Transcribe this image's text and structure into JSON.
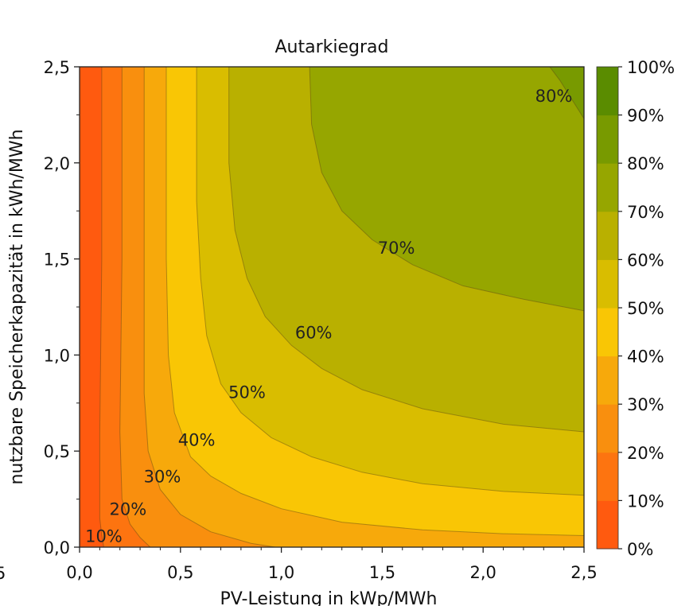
{
  "chart_data": {
    "type": "contourf",
    "title": "Autarkiegrad",
    "xlabel": "PV-Leistung in kWp/MWh",
    "ylabel": "nutzbare Speicherkapazität in kWh/MWh",
    "xlim": [
      0,
      2.5
    ],
    "ylim": [
      0,
      2.5
    ],
    "x_ticks": [
      0,
      0.5,
      1.0,
      1.5,
      2.0,
      2.5
    ],
    "x_tick_labels": [
      "0,0",
      "0,5",
      "1,0",
      "1,5",
      "2,0",
      "2,5"
    ],
    "y_ticks": [
      0,
      0.5,
      1.0,
      1.5,
      2.0,
      2.5
    ],
    "y_tick_labels": [
      "0,0",
      "0,5",
      "1,0",
      "1,5",
      "2,0",
      "2,5"
    ],
    "left_edge_fragment": "5",
    "levels": [
      0,
      10,
      20,
      30,
      40,
      50,
      60,
      70,
      80,
      90,
      100
    ],
    "band_colors": [
      "#ff5a0f",
      "#fd7410",
      "#f98f0e",
      "#f7a90b",
      "#f9c605",
      "#d9bd00",
      "#b9b000",
      "#96a600",
      "#789a00",
      "#5a8c00"
    ],
    "colorbar_labels": [
      "0%",
      "10%",
      "20%",
      "30%",
      "40%",
      "50%",
      "60%",
      "70%",
      "80%",
      "90%",
      "100%"
    ],
    "contour_lines": [
      {
        "level": 10,
        "label": "10%",
        "points": [
          [
            0.11,
            2.5
          ],
          [
            0.11,
            1.5
          ],
          [
            0.1,
            0.6
          ],
          [
            0.1,
            0.15
          ],
          [
            0.11,
            0.06
          ],
          [
            0.12,
            0
          ]
        ]
      },
      {
        "level": 20,
        "label": "20%",
        "points": [
          [
            0.21,
            2.5
          ],
          [
            0.21,
            1.5
          ],
          [
            0.2,
            0.6
          ],
          [
            0.21,
            0.25
          ],
          [
            0.25,
            0.12
          ],
          [
            0.3,
            0.05
          ],
          [
            0.35,
            0
          ]
        ]
      },
      {
        "level": 30,
        "label": "30%",
        "points": [
          [
            0.32,
            2.5
          ],
          [
            0.32,
            1.5
          ],
          [
            0.32,
            0.8
          ],
          [
            0.34,
            0.5
          ],
          [
            0.4,
            0.3
          ],
          [
            0.5,
            0.17
          ],
          [
            0.65,
            0.08
          ],
          [
            0.85,
            0.02
          ],
          [
            0.97,
            0
          ]
        ]
      },
      {
        "level": 40,
        "label": "40%",
        "points": [
          [
            0.43,
            2.5
          ],
          [
            0.43,
            1.5
          ],
          [
            0.44,
            1.0
          ],
          [
            0.47,
            0.7
          ],
          [
            0.55,
            0.47
          ],
          [
            0.65,
            0.37
          ],
          [
            0.8,
            0.28
          ],
          [
            1.0,
            0.2
          ],
          [
            1.3,
            0.13
          ],
          [
            1.7,
            0.09
          ],
          [
            2.1,
            0.07
          ],
          [
            2.5,
            0.06
          ]
        ]
      },
      {
        "level": 50,
        "label": "50%",
        "points": [
          [
            0.58,
            2.5
          ],
          [
            0.58,
            1.8
          ],
          [
            0.6,
            1.4
          ],
          [
            0.63,
            1.1
          ],
          [
            0.7,
            0.85
          ],
          [
            0.8,
            0.7
          ],
          [
            0.95,
            0.57
          ],
          [
            1.15,
            0.47
          ],
          [
            1.4,
            0.39
          ],
          [
            1.7,
            0.33
          ],
          [
            2.1,
            0.29
          ],
          [
            2.5,
            0.27
          ]
        ]
      },
      {
        "level": 60,
        "label": "60%",
        "points": [
          [
            0.74,
            2.5
          ],
          [
            0.74,
            2.0
          ],
          [
            0.77,
            1.65
          ],
          [
            0.83,
            1.4
          ],
          [
            0.92,
            1.2
          ],
          [
            1.05,
            1.05
          ],
          [
            1.2,
            0.93
          ],
          [
            1.4,
            0.82
          ],
          [
            1.7,
            0.72
          ],
          [
            2.1,
            0.64
          ],
          [
            2.5,
            0.6
          ]
        ]
      },
      {
        "level": 70,
        "label": "70%",
        "points": [
          [
            1.14,
            2.5
          ],
          [
            1.15,
            2.2
          ],
          [
            1.2,
            1.95
          ],
          [
            1.3,
            1.75
          ],
          [
            1.45,
            1.6
          ],
          [
            1.65,
            1.47
          ],
          [
            1.9,
            1.36
          ],
          [
            2.2,
            1.29
          ],
          [
            2.5,
            1.23
          ]
        ]
      },
      {
        "level": 80,
        "label": "80%",
        "points": [
          [
            2.33,
            2.5
          ],
          [
            2.38,
            2.43
          ],
          [
            2.44,
            2.33
          ],
          [
            2.5,
            2.23
          ]
        ]
      }
    ],
    "contour_label_positions": [
      {
        "text": "10%",
        "x": 0.12,
        "y": 0.06
      },
      {
        "text": "20%",
        "x": 0.24,
        "y": 0.2
      },
      {
        "text": "30%",
        "x": 0.41,
        "y": 0.37
      },
      {
        "text": "40%",
        "x": 0.58,
        "y": 0.56
      },
      {
        "text": "50%",
        "x": 0.83,
        "y": 0.81
      },
      {
        "text": "60%",
        "x": 1.16,
        "y": 1.12
      },
      {
        "text": "70%",
        "x": 1.57,
        "y": 1.56
      },
      {
        "text": "80%",
        "x": 2.35,
        "y": 2.35
      }
    ],
    "hidden_extent_note": "left axis labels only"
  }
}
